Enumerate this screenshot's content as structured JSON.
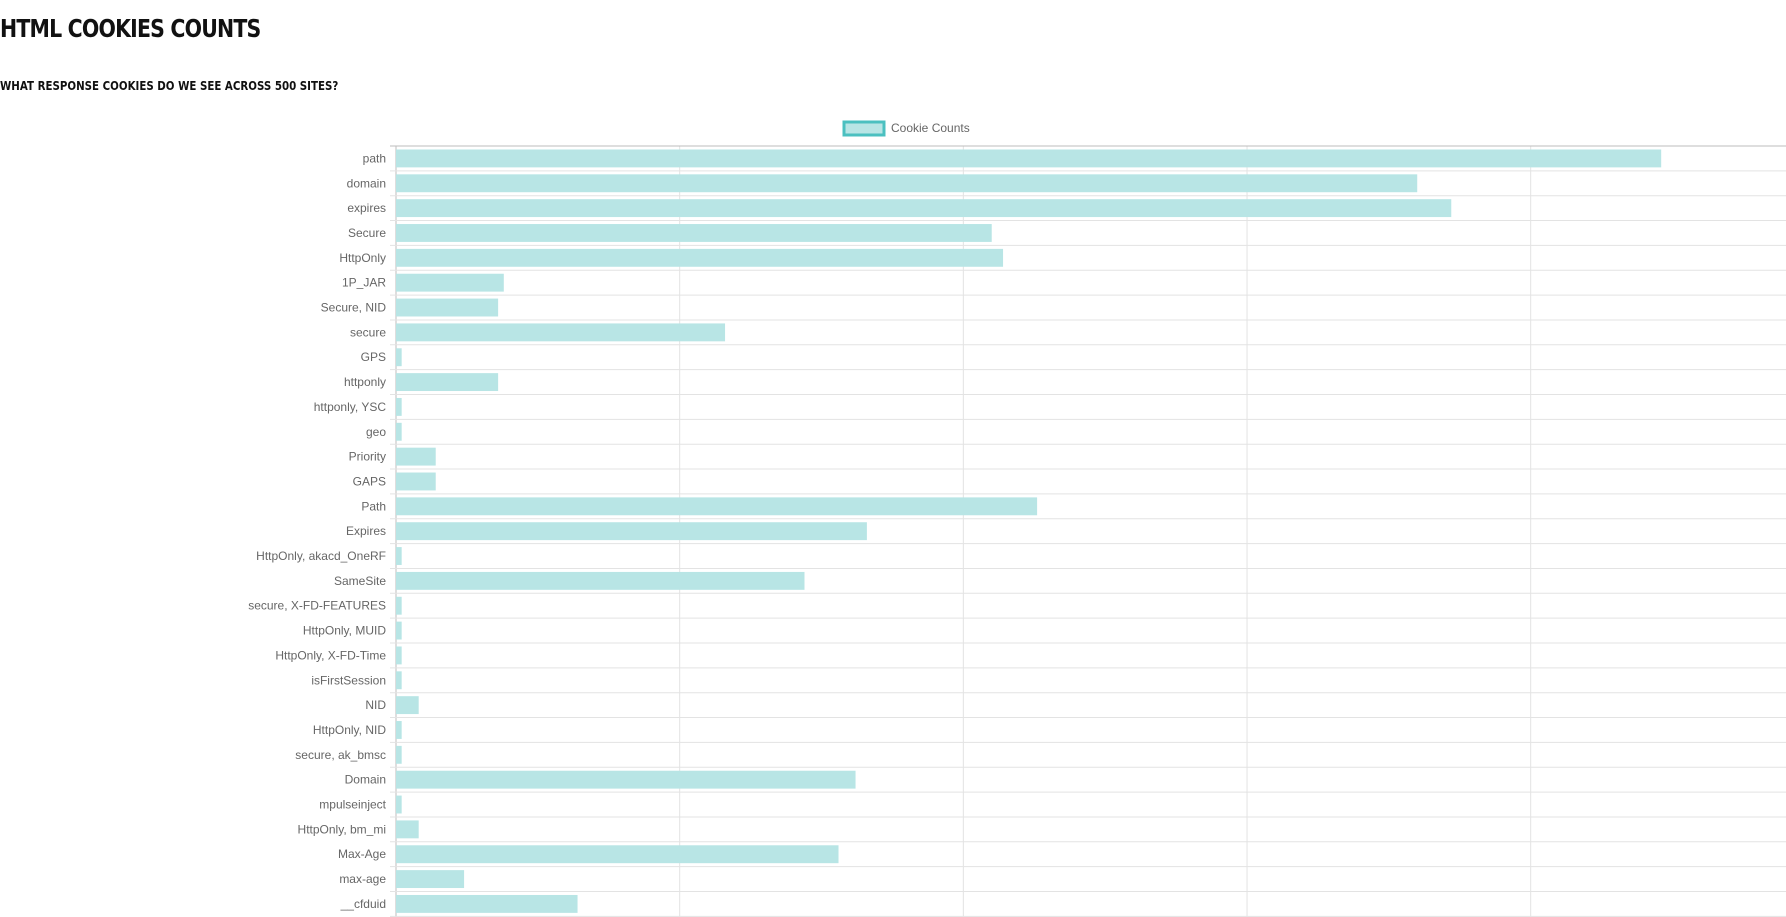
{
  "page": {
    "title": "HTML Cookies Counts",
    "subtitle": "What response cookies do we see across 500 sites?"
  },
  "chart_data": {
    "type": "bar",
    "orientation": "horizontal",
    "title": "",
    "legend": {
      "label": "Cookie Counts",
      "placement": "top-center"
    },
    "colors": {
      "fill": "#b8e5e5",
      "stroke": "#4bc0c0",
      "grid": "#e3e3e3"
    },
    "grid": true,
    "xlim": [
      0,
      245
    ],
    "categories": [
      "path",
      "domain",
      "expires",
      "Secure",
      "HttpOnly",
      "1P_JAR",
      "Secure, NID",
      "secure",
      "GPS",
      "httponly",
      "httponly, YSC",
      "geo",
      "Priority",
      "GAPS",
      "Path",
      "Expires",
      "HttpOnly, akacd_OneRF",
      "SameSite",
      "secure, X-FD-FEATURES",
      "HttpOnly, MUID",
      "HttpOnly, X-FD-Time",
      "isFirstSession",
      "NID",
      "HttpOnly, NID",
      "secure, ak_bmsc",
      "Domain",
      "mpulseinject",
      "HttpOnly, bm_mi",
      "Max-Age",
      "max-age",
      "__cfduid"
    ],
    "values": [
      223,
      180,
      186,
      105,
      107,
      19,
      18,
      58,
      1,
      18,
      1,
      1,
      7,
      7,
      113,
      83,
      1,
      72,
      1,
      1,
      1,
      1,
      4,
      1,
      1,
      81,
      1,
      4,
      78,
      12,
      32
    ]
  }
}
